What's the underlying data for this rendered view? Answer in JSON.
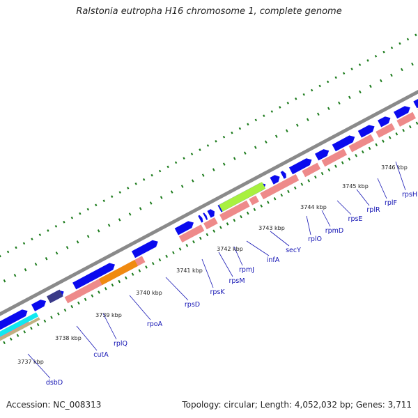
{
  "title": "Ralstonia eutropha H16 chromosome 1, complete genome",
  "accession": "Accession: NC_008313",
  "summary": "Topology: circular; Length: 4,052,032 bp; Genes: 3,711",
  "colors": {
    "backbone": "#8a8a8a",
    "forward_cds": "#0a0aee",
    "reverse_cds": "#ee8a8a",
    "highlight_green": "#a8f040",
    "highlight_orange": "#f08a10",
    "highlight_navy": "#3a3a88",
    "highlight_cyan": "#10e8f0",
    "highlight_khaki": "#c0b080",
    "tick_green": "#1a7a1a",
    "label_blue": "#1414b4"
  },
  "kbp_labels": [
    "3737 kbp",
    "3738 kbp",
    "3739 kbp",
    "3740 kbp",
    "3741 kbp",
    "3742 kbp",
    "3743 kbp",
    "3744 kbp",
    "3745 kbp",
    "3746 kbp"
  ],
  "genes": [
    "dsbD",
    "cutA",
    "rplQ",
    "rpoA",
    "rpsD",
    "rpsK",
    "rpsM",
    "rpmJ",
    "infA",
    "secY",
    "rplO",
    "rpmD",
    "rpsE",
    "rplR",
    "rplF",
    "rpsH"
  ]
}
